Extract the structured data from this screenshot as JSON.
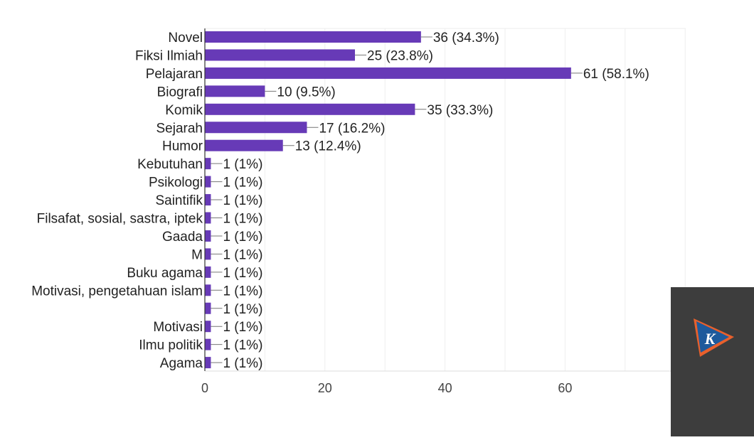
{
  "chart_data": {
    "type": "bar",
    "orientation": "horizontal",
    "categories": [
      "Novel",
      "Fiksi Ilmiah",
      "Pelajaran",
      "Biografi",
      "Komik",
      "Sejarah",
      "Humor",
      "Kebutuhan",
      "Psikologi",
      "Saintifik",
      "Filsafat, sosial, sastra, iptek",
      "Gaada",
      "M",
      "Buku agama",
      "Motivasi, pengetahuan islam",
      "",
      "Motivasi",
      "Ilmu politik",
      "Agama"
    ],
    "values": [
      36,
      25,
      61,
      10,
      35,
      17,
      13,
      1,
      1,
      1,
      1,
      1,
      1,
      1,
      1,
      1,
      1,
      1,
      1
    ],
    "value_labels": [
      "36 (34.3%)",
      "25 (23.8%)",
      "61 (58.1%)",
      "10 (9.5%)",
      "35 (33.3%)",
      "17 (16.2%)",
      "13 (12.4%)",
      "1 (1%)",
      "1 (1%)",
      "1 (1%)",
      "1 (1%)",
      "1 (1%)",
      "1 (1%)",
      "1 (1%)",
      "1 (1%)",
      "1 (1%)",
      "1 (1%)",
      "1 (1%)",
      "1 (1%)"
    ],
    "xticks": [
      0,
      20,
      40,
      60
    ],
    "xlim": [
      0,
      80
    ],
    "grid": true,
    "bar_color": "#673ab7"
  },
  "badge": {
    "logo_letter": "K",
    "logo_colors": [
      "#1e5a9c",
      "#e8602c"
    ]
  }
}
